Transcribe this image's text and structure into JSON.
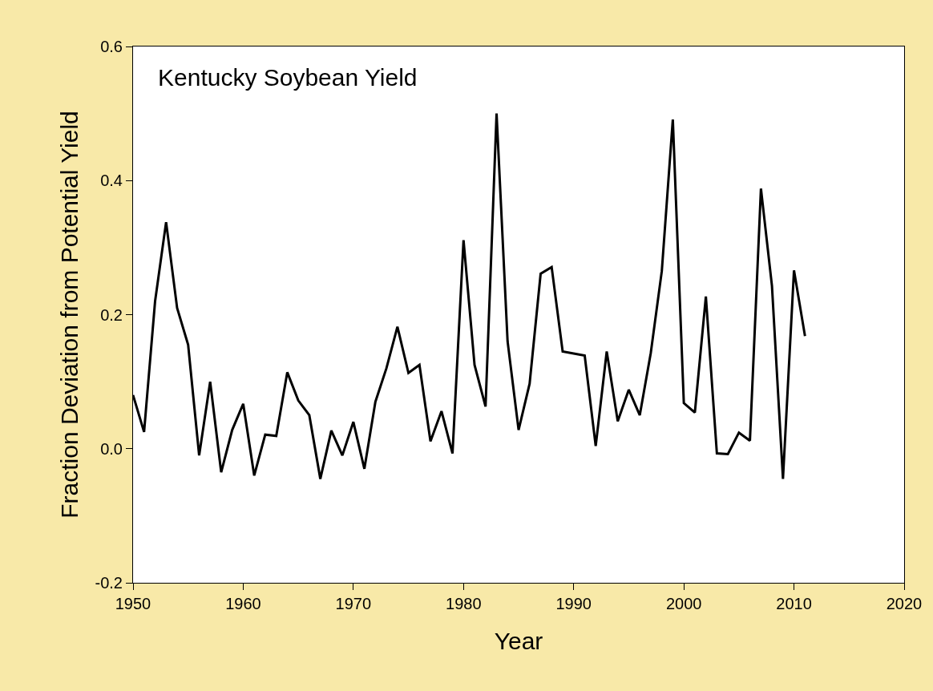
{
  "chart_data": {
    "type": "line",
    "title": "Kentucky Soybean Yield",
    "xlabel": "Year",
    "ylabel": "Fraction Deviation from Potential Yield",
    "x": [
      1950,
      1951,
      1952,
      1953,
      1954,
      1955,
      1956,
      1957,
      1958,
      1959,
      1960,
      1961,
      1962,
      1963,
      1964,
      1965,
      1966,
      1967,
      1968,
      1969,
      1970,
      1971,
      1972,
      1973,
      1974,
      1975,
      1976,
      1977,
      1978,
      1979,
      1980,
      1981,
      1982,
      1983,
      1984,
      1985,
      1986,
      1987,
      1988,
      1989,
      1990,
      1991,
      1992,
      1993,
      1994,
      1995,
      1996,
      1997,
      1998,
      1999,
      2000,
      2001,
      2002,
      2003,
      2004,
      2005,
      2006,
      2007,
      2008,
      2009,
      2010,
      2011
    ],
    "series": [
      {
        "color": "#000000",
        "values": [
          0.08,
          0.025,
          0.22,
          0.338,
          0.21,
          0.155,
          -0.01,
          0.1,
          -0.035,
          0.028,
          0.067,
          -0.04,
          0.021,
          0.019,
          0.114,
          0.072,
          0.05,
          -0.045,
          0.027,
          -0.01,
          0.04,
          -0.03,
          0.07,
          0.12,
          0.182,
          0.113,
          0.125,
          0.011,
          0.056,
          -0.007,
          0.311,
          0.125,
          0.063,
          0.5,
          0.16,
          0.028,
          0.097,
          0.261,
          0.271,
          0.145,
          0.142,
          0.139,
          0.004,
          0.145,
          0.041,
          0.088,
          0.05,
          0.143,
          0.265,
          0.491,
          0.068,
          0.054,
          0.227,
          -0.007,
          -0.008,
          0.024,
          0.012,
          0.388,
          0.243,
          -0.045,
          0.266,
          0.168
        ]
      }
    ],
    "xlim": [
      1950,
      2020
    ],
    "xticks": [
      1950,
      1960,
      1970,
      1980,
      1990,
      2000,
      2010,
      2020
    ],
    "ylim": [
      -0.2,
      0.6
    ],
    "yticks": [
      -0.2,
      {
        "value": 0,
        "label": "0.0"
      },
      0.2,
      0.4,
      0.6
    ],
    "marker": "none",
    "line_style": "solid"
  }
}
